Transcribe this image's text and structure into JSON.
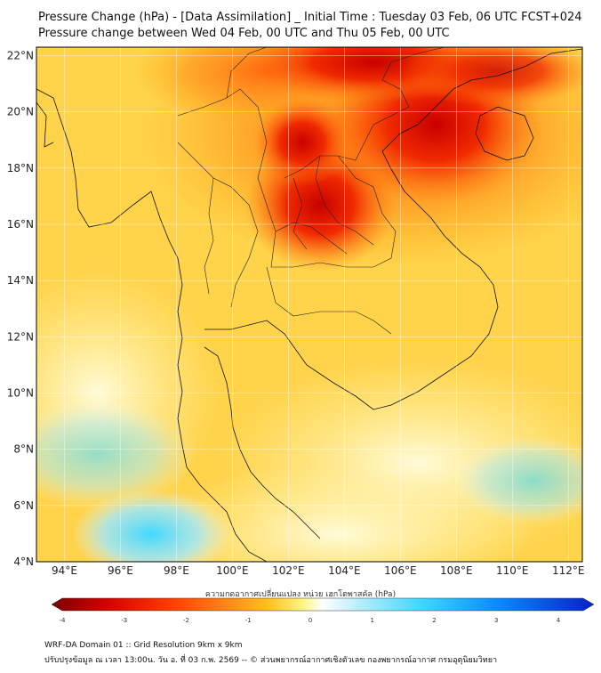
{
  "title": {
    "line1": "Pressure Change (hPa) - [Data Assimilation] _ Initial Time : Tuesday 03 Feb, 06 UTC FCST+024",
    "line2": "Pressure change between Wed 04 Feb, 00 UTC and Thu 05 Feb, 00 UTC"
  },
  "map": {
    "lat_labels": [
      "22°N",
      "20°N",
      "18°N",
      "16°N",
      "14°N",
      "12°N",
      "10°N",
      "8°N",
      "6°N",
      "4°N"
    ],
    "lon_labels": [
      "94°E",
      "96°E",
      "98°E",
      "100°E",
      "102°E",
      "104°E",
      "106°E",
      "108°E",
      "110°E",
      "112°E"
    ],
    "lat_range": [
      4,
      22.3
    ],
    "lon_range": [
      93,
      112.5
    ]
  },
  "colorbar": {
    "label": "ความกดอากาศเปลี่ยนแปลง หน่วย เฮกโตพาสคัล (hPa)",
    "ticks": [
      "-4",
      "-3",
      "-2",
      "-1",
      "0",
      "1",
      "2",
      "3",
      "4"
    ],
    "range": [
      -4,
      4
    ],
    "colors": [
      "#7a0000",
      "#d40000",
      "#ff3c00",
      "#ff8c1a",
      "#ffc21f",
      "#fff27a",
      "#ffffff",
      "#bfefff",
      "#3fd8ff",
      "#0a8cff",
      "#0a1fc8"
    ]
  },
  "footer": {
    "line1": "WRF-DA Domain 01 :: Grid Resolution 9km x 9km",
    "line2": "ปรับปรุงข้อมูล ณ เวลา 13:00น. วัน อ. ที่ 03 ก.พ. 2569 -- © ส่วนพยากรณ์อากาศเชิงตัวเลข กองพยากรณ์อากาศ กรมอุตุนิยมวิทยา"
  },
  "chart_data": {
    "type": "heatmap",
    "variable": "Pressure Change (hPa)",
    "features": [
      {
        "kind": "max_fall",
        "lon": 106.5,
        "lat": 19.5,
        "value": -2.9
      },
      {
        "kind": "max_fall",
        "lon": 102.5,
        "lat": 17.0,
        "value": -2.9
      },
      {
        "kind": "max_fall",
        "lon": 104.2,
        "lat": 22.0,
        "value": -2.8
      },
      {
        "kind": "fall",
        "lon": 101.5,
        "lat": 19.5,
        "value": -2.0
      },
      {
        "kind": "fall",
        "lon": 109.0,
        "lat": 17.0,
        "value": -1.8
      },
      {
        "kind": "near_zero",
        "lon": 97.0,
        "lat": 7.0,
        "value": 0.4
      },
      {
        "kind": "rise",
        "lon": 97.2,
        "lat": 4.5,
        "value": 1.2
      },
      {
        "kind": "rise",
        "lon": 110.5,
        "lat": 6.8,
        "value": 0.5
      }
    ]
  }
}
